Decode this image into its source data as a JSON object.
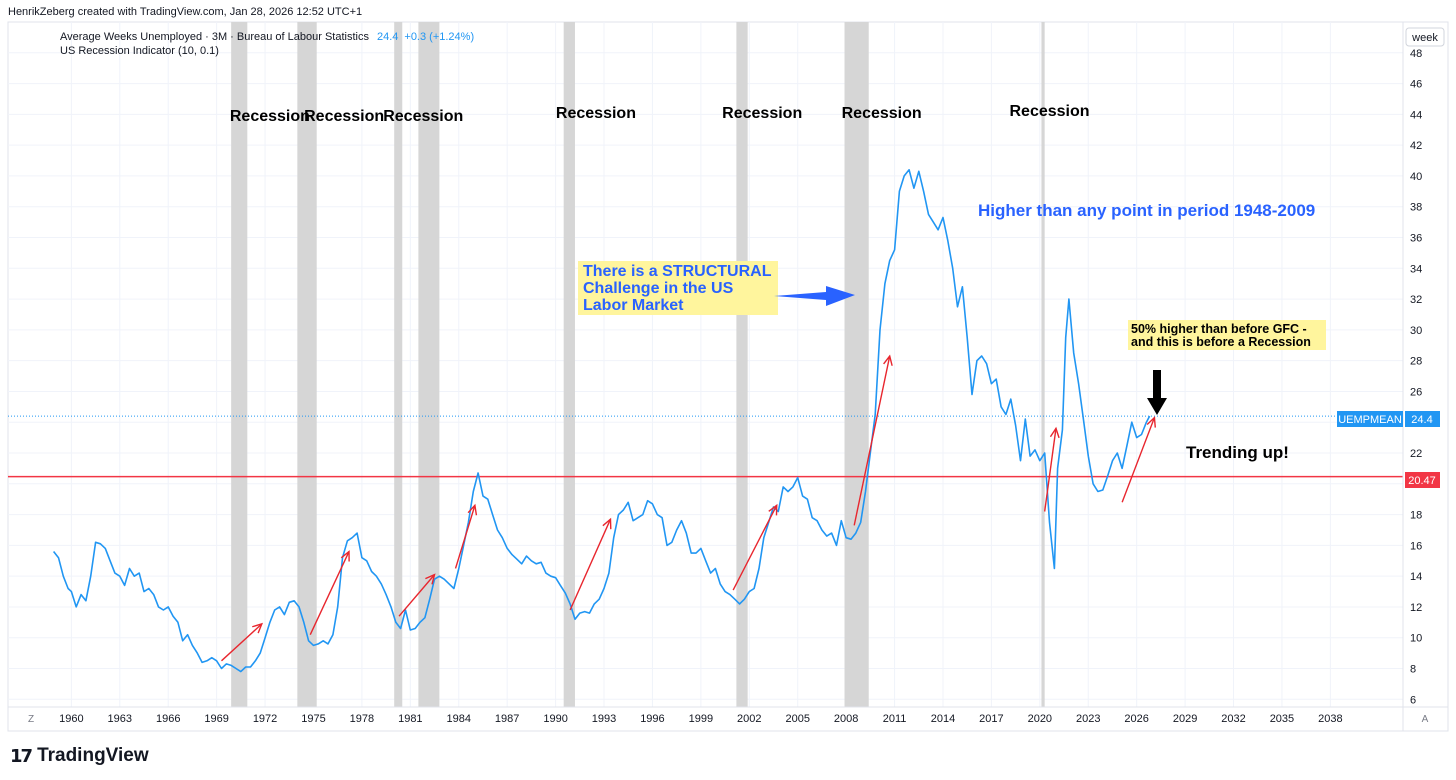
{
  "header": {
    "credit": "HenrikZeberg created with TradingView.com, Jan 28, 2026 12:52 UTC+1"
  },
  "legend": {
    "series_title": "Average Weeks Unemployed · 3M · Bureau of Labour Statistics",
    "last_value": "24.4",
    "change": "+0.3 (+1.24%)",
    "indicator": "US Recession Indicator (10, 0.1)"
  },
  "axis": {
    "unit_label": "week",
    "left_corner": "Z",
    "right_corner": "A"
  },
  "footer": {
    "brand_mark": "𝟭𝟳",
    "brand_name": "TradingView"
  },
  "chart_data": {
    "type": "line",
    "title": "Average Weeks Unemployed · 3M · Bureau of Labour Statistics",
    "xlabel": "",
    "ylabel": "week",
    "xlim": [
      1958.8,
      2042.5
    ],
    "ylim": [
      5.5,
      50
    ],
    "grid": true,
    "x_ticks": [
      "1960",
      "1963",
      "1966",
      "1969",
      "1972",
      "1975",
      "1978",
      "1981",
      "1984",
      "1987",
      "1990",
      "1993",
      "1996",
      "1999",
      "2002",
      "2005",
      "2008",
      "2011",
      "2014",
      "2017",
      "2020",
      "2023",
      "2026",
      "2029",
      "2032",
      "2035",
      "2038"
    ],
    "y_ticks": [
      6,
      8,
      10,
      12,
      14,
      16,
      18,
      20,
      22,
      24,
      26,
      28,
      30,
      32,
      34,
      36,
      38,
      40,
      42,
      44,
      46,
      48
    ],
    "series": [
      {
        "name": "UEMPMEAN",
        "color": "#2196f3",
        "points": [
          [
            1958.9,
            15.6
          ],
          [
            1959.2,
            15.2
          ],
          [
            1959.5,
            14.0
          ],
          [
            1959.8,
            13.2
          ],
          [
            1960.0,
            13.0
          ],
          [
            1960.3,
            12.0
          ],
          [
            1960.6,
            12.8
          ],
          [
            1960.9,
            12.4
          ],
          [
            1961.2,
            14.0
          ],
          [
            1961.5,
            16.2
          ],
          [
            1961.8,
            16.1
          ],
          [
            1962.1,
            15.8
          ],
          [
            1962.4,
            15.0
          ],
          [
            1962.7,
            14.2
          ],
          [
            1963.0,
            14.0
          ],
          [
            1963.3,
            13.4
          ],
          [
            1963.6,
            14.5
          ],
          [
            1963.9,
            14.0
          ],
          [
            1964.2,
            14.2
          ],
          [
            1964.5,
            13.0
          ],
          [
            1964.8,
            13.2
          ],
          [
            1965.1,
            12.8
          ],
          [
            1965.4,
            12.0
          ],
          [
            1965.7,
            11.8
          ],
          [
            1966.0,
            12.0
          ],
          [
            1966.3,
            11.4
          ],
          [
            1966.6,
            11.0
          ],
          [
            1966.9,
            9.8
          ],
          [
            1967.2,
            10.2
          ],
          [
            1967.5,
            9.5
          ],
          [
            1967.8,
            9.0
          ],
          [
            1968.1,
            8.4
          ],
          [
            1968.4,
            8.5
          ],
          [
            1968.7,
            8.7
          ],
          [
            1969.0,
            8.5
          ],
          [
            1969.3,
            8.0
          ],
          [
            1969.6,
            8.3
          ],
          [
            1969.9,
            8.2
          ],
          [
            1970.2,
            8.0
          ],
          [
            1970.5,
            7.8
          ],
          [
            1970.8,
            8.1
          ],
          [
            1971.1,
            8.1
          ],
          [
            1971.4,
            8.5
          ],
          [
            1971.7,
            9.0
          ],
          [
            1972.0,
            10.0
          ],
          [
            1972.3,
            11.0
          ],
          [
            1972.6,
            11.8
          ],
          [
            1972.9,
            12.0
          ],
          [
            1973.2,
            11.5
          ],
          [
            1973.5,
            12.3
          ],
          [
            1973.8,
            12.4
          ],
          [
            1974.1,
            12.0
          ],
          [
            1974.4,
            11.0
          ],
          [
            1974.7,
            9.8
          ],
          [
            1975.0,
            9.5
          ],
          [
            1975.3,
            9.6
          ],
          [
            1975.6,
            9.8
          ],
          [
            1975.9,
            9.6
          ],
          [
            1976.2,
            10.2
          ],
          [
            1976.5,
            12.0
          ],
          [
            1976.8,
            15.2
          ],
          [
            1977.1,
            16.3
          ],
          [
            1977.4,
            16.5
          ],
          [
            1977.7,
            16.8
          ],
          [
            1978.0,
            15.2
          ],
          [
            1978.3,
            15.0
          ],
          [
            1978.6,
            14.3
          ],
          [
            1978.9,
            14.0
          ],
          [
            1979.2,
            13.5
          ],
          [
            1979.5,
            12.8
          ],
          [
            1979.8,
            12.0
          ],
          [
            1980.1,
            11.0
          ],
          [
            1980.4,
            10.6
          ],
          [
            1980.7,
            11.8
          ],
          [
            1981.0,
            10.5
          ],
          [
            1981.3,
            10.6
          ],
          [
            1981.6,
            11.0
          ],
          [
            1981.9,
            11.3
          ],
          [
            1982.2,
            12.5
          ],
          [
            1982.5,
            13.8
          ],
          [
            1982.8,
            14.0
          ],
          [
            1983.1,
            13.8
          ],
          [
            1983.4,
            13.5
          ],
          [
            1983.7,
            13.2
          ],
          [
            1984.0,
            14.5
          ],
          [
            1984.3,
            16.0
          ],
          [
            1984.6,
            17.5
          ],
          [
            1984.9,
            19.5
          ],
          [
            1985.2,
            20.7
          ],
          [
            1985.5,
            19.2
          ],
          [
            1985.8,
            19.0
          ],
          [
            1986.1,
            18.0
          ],
          [
            1986.4,
            17.0
          ],
          [
            1986.7,
            16.5
          ],
          [
            1987.0,
            15.8
          ],
          [
            1987.3,
            15.4
          ],
          [
            1987.6,
            15.1
          ],
          [
            1987.9,
            14.8
          ],
          [
            1988.2,
            15.3
          ],
          [
            1988.5,
            15.0
          ],
          [
            1988.8,
            14.8
          ],
          [
            1989.1,
            14.9
          ],
          [
            1989.4,
            14.2
          ],
          [
            1989.7,
            14.0
          ],
          [
            1990.0,
            13.9
          ],
          [
            1990.3,
            13.4
          ],
          [
            1990.6,
            12.9
          ],
          [
            1990.9,
            12.2
          ],
          [
            1991.2,
            11.2
          ],
          [
            1991.5,
            11.6
          ],
          [
            1991.8,
            11.7
          ],
          [
            1992.1,
            11.6
          ],
          [
            1992.4,
            12.2
          ],
          [
            1992.7,
            12.5
          ],
          [
            1993.0,
            13.2
          ],
          [
            1993.3,
            14.2
          ],
          [
            1993.6,
            16.5
          ],
          [
            1993.9,
            18.0
          ],
          [
            1994.2,
            18.3
          ],
          [
            1994.5,
            18.8
          ],
          [
            1994.8,
            17.6
          ],
          [
            1995.1,
            17.8
          ],
          [
            1995.4,
            18.0
          ],
          [
            1995.7,
            18.9
          ],
          [
            1996.0,
            18.7
          ],
          [
            1996.3,
            18.0
          ],
          [
            1996.6,
            17.8
          ],
          [
            1996.9,
            16.0
          ],
          [
            1997.2,
            16.2
          ],
          [
            1997.5,
            17.0
          ],
          [
            1997.8,
            17.6
          ],
          [
            1998.1,
            16.8
          ],
          [
            1998.4,
            15.5
          ],
          [
            1998.7,
            15.5
          ],
          [
            1999.0,
            15.8
          ],
          [
            1999.3,
            15.0
          ],
          [
            1999.6,
            14.2
          ],
          [
            1999.9,
            14.5
          ],
          [
            2000.2,
            13.5
          ],
          [
            2000.5,
            13.0
          ],
          [
            2000.8,
            12.8
          ],
          [
            2001.1,
            12.5
          ],
          [
            2001.4,
            12.2
          ],
          [
            2001.7,
            12.5
          ],
          [
            2002.0,
            13.0
          ],
          [
            2002.3,
            13.2
          ],
          [
            2002.6,
            14.5
          ],
          [
            2002.9,
            16.5
          ],
          [
            2003.2,
            17.5
          ],
          [
            2003.5,
            18.5
          ],
          [
            2003.8,
            18.2
          ],
          [
            2004.1,
            19.8
          ],
          [
            2004.4,
            19.5
          ],
          [
            2004.7,
            19.8
          ],
          [
            2005.0,
            20.4
          ],
          [
            2005.3,
            19.2
          ],
          [
            2005.6,
            19.0
          ],
          [
            2005.9,
            17.8
          ],
          [
            2006.2,
            17.6
          ],
          [
            2006.5,
            17.0
          ],
          [
            2006.8,
            16.6
          ],
          [
            2007.1,
            16.8
          ],
          [
            2007.4,
            16.0
          ],
          [
            2007.7,
            17.6
          ],
          [
            2008.0,
            16.5
          ],
          [
            2008.3,
            16.4
          ],
          [
            2008.6,
            16.8
          ],
          [
            2008.9,
            17.5
          ],
          [
            2009.2,
            19.5
          ],
          [
            2009.5,
            22.0
          ],
          [
            2009.8,
            24.5
          ],
          [
            2010.1,
            30.0
          ],
          [
            2010.4,
            33.0
          ],
          [
            2010.7,
            34.5
          ],
          [
            2011.0,
            35.2
          ],
          [
            2011.3,
            39.0
          ],
          [
            2011.6,
            40.0
          ],
          [
            2011.9,
            40.4
          ],
          [
            2012.2,
            39.2
          ],
          [
            2012.5,
            40.3
          ],
          [
            2012.8,
            39.0
          ],
          [
            2013.1,
            37.5
          ],
          [
            2013.4,
            37.0
          ],
          [
            2013.7,
            36.5
          ],
          [
            2014.0,
            37.3
          ],
          [
            2014.3,
            35.8
          ],
          [
            2014.6,
            34.0
          ],
          [
            2014.9,
            31.5
          ],
          [
            2015.2,
            32.8
          ],
          [
            2015.5,
            29.5
          ],
          [
            2015.8,
            25.8
          ],
          [
            2016.1,
            28.0
          ],
          [
            2016.4,
            28.3
          ],
          [
            2016.7,
            27.8
          ],
          [
            2017.0,
            26.5
          ],
          [
            2017.3,
            26.8
          ],
          [
            2017.6,
            25.0
          ],
          [
            2017.9,
            24.5
          ],
          [
            2018.2,
            25.5
          ],
          [
            2018.5,
            23.8
          ],
          [
            2018.8,
            21.5
          ],
          [
            2019.1,
            24.2
          ],
          [
            2019.4,
            21.8
          ],
          [
            2019.7,
            22.2
          ],
          [
            2020.0,
            21.5
          ],
          [
            2020.3,
            22.0
          ],
          [
            2020.6,
            17.5
          ],
          [
            2020.9,
            14.5
          ],
          [
            2021.1,
            21.0
          ],
          [
            2021.4,
            23.5
          ],
          [
            2021.6,
            29.5
          ],
          [
            2021.8,
            32.0
          ],
          [
            2022.1,
            28.5
          ],
          [
            2022.4,
            26.5
          ],
          [
            2022.7,
            24.2
          ],
          [
            2023.0,
            21.8
          ],
          [
            2023.3,
            20.0
          ],
          [
            2023.6,
            19.5
          ],
          [
            2023.9,
            19.6
          ],
          [
            2024.2,
            20.5
          ],
          [
            2024.5,
            21.5
          ],
          [
            2024.8,
            22.0
          ],
          [
            2025.1,
            21.0
          ],
          [
            2025.4,
            22.5
          ],
          [
            2025.7,
            24.0
          ],
          [
            2026.0,
            23.0
          ],
          [
            2026.3,
            23.2
          ],
          [
            2026.6,
            24.0
          ],
          [
            2026.8,
            24.4
          ]
        ]
      }
    ],
    "recession_bands": [
      [
        1969.9,
        1970.9
      ],
      [
        1974.0,
        1975.2
      ],
      [
        1980.0,
        1980.5
      ],
      [
        1981.5,
        1982.8
      ],
      [
        1990.5,
        1991.2
      ],
      [
        2001.2,
        2001.9
      ],
      [
        2007.9,
        2009.4
      ],
      [
        2020.1,
        2020.3
      ]
    ],
    "recession_label": "Recession",
    "recession_label_positions": [
      1972.3,
      1976.9,
      1981.8,
      1992.5,
      2002.8,
      2010.2,
      2020.6
    ],
    "horizontal_lines": [
      {
        "name": "red-level",
        "value": 20.47,
        "color": "#f23645",
        "label": "20.47"
      },
      {
        "name": "last-price",
        "value": 24.4,
        "color": "#2196f3",
        "label": "24.4",
        "series_label": "UEMPMEAN"
      }
    ],
    "annotations": [
      {
        "name": "structural-note",
        "lines": [
          "There is a STRUCTURAL",
          "Challenge in the US",
          "Labor Market"
        ],
        "color": "#2962ff",
        "highlight": "#fff59d"
      },
      {
        "name": "higher-note",
        "text": "Higher than any point in period 1948-2009",
        "color": "#2962ff"
      },
      {
        "name": "gfc-note",
        "lines": [
          "50% higher than before GFC -",
          "and this is before a Recession"
        ],
        "color": "#000000",
        "highlight": "#fff59d"
      },
      {
        "name": "trending-note",
        "text": "Trending up!",
        "color": "#000000"
      }
    ],
    "trend_arrows": [
      [
        1969.3,
        8.5,
        1971.8,
        10.9
      ],
      [
        1974.8,
        10.2,
        1977.2,
        15.6
      ],
      [
        1980.3,
        11.4,
        1982.5,
        14.1
      ],
      [
        1983.8,
        14.5,
        1985.0,
        18.6
      ],
      [
        1990.9,
        11.8,
        1993.4,
        17.7
      ],
      [
        2001.0,
        13.1,
        2003.7,
        18.6
      ],
      [
        2008.5,
        17.3,
        2010.7,
        28.3
      ],
      [
        2020.3,
        18.2,
        2021.0,
        23.6
      ],
      [
        2025.1,
        18.8,
        2027.1,
        24.3
      ]
    ]
  }
}
